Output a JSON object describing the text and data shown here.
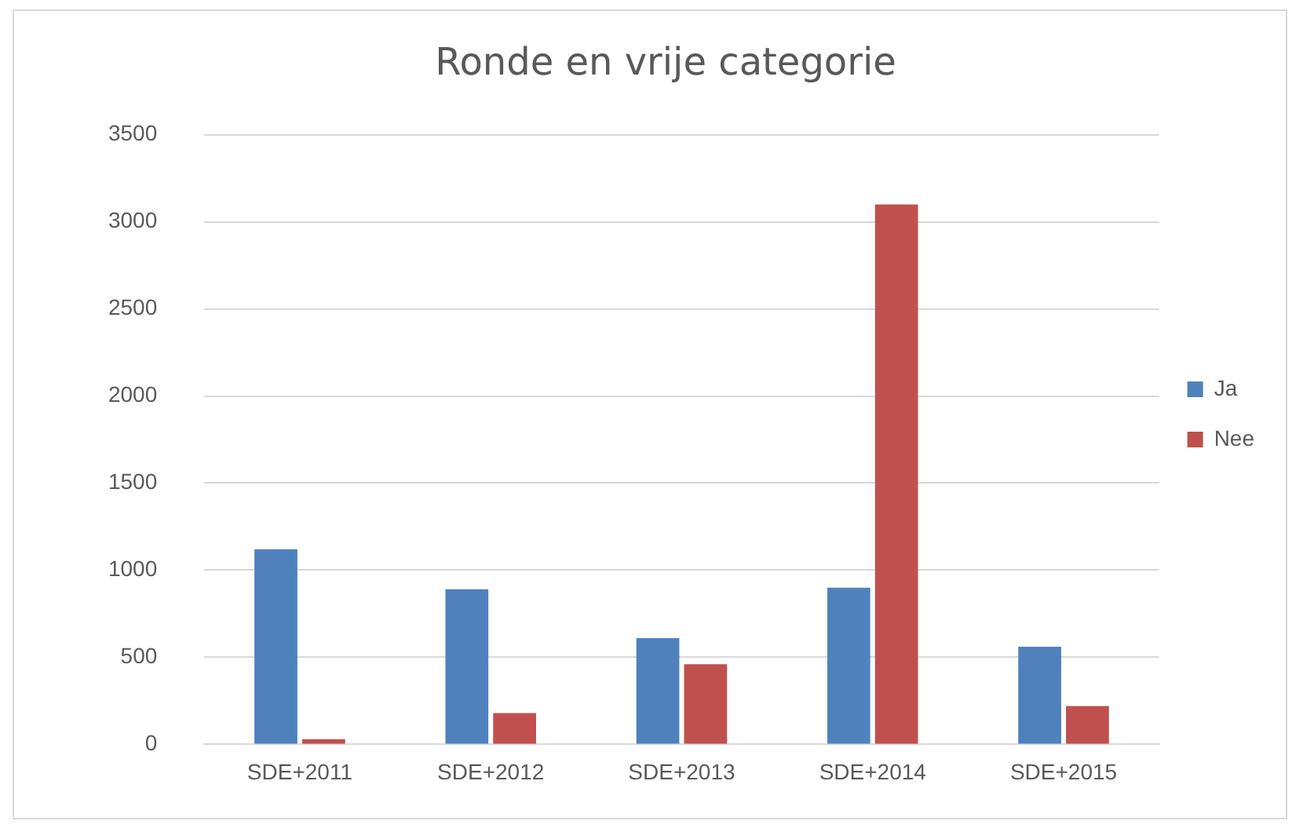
{
  "chart_data": {
    "type": "bar",
    "title": "Ronde en vrije categorie",
    "categories": [
      "SDE+2011",
      "SDE+2012",
      "SDE+2013",
      "SDE+2014",
      "SDE+2015"
    ],
    "series": [
      {
        "name": "Ja",
        "color": "#4f81bd",
        "values": [
          1120,
          890,
          610,
          900,
          560
        ]
      },
      {
        "name": "Nee",
        "color": "#c0504d",
        "values": [
          30,
          180,
          460,
          3100,
          220
        ]
      }
    ],
    "ylim": [
      0,
      3500
    ],
    "yticks": [
      0,
      500,
      1000,
      1500,
      2000,
      2500,
      3000,
      3500
    ],
    "grid": "y",
    "legend": "right"
  }
}
